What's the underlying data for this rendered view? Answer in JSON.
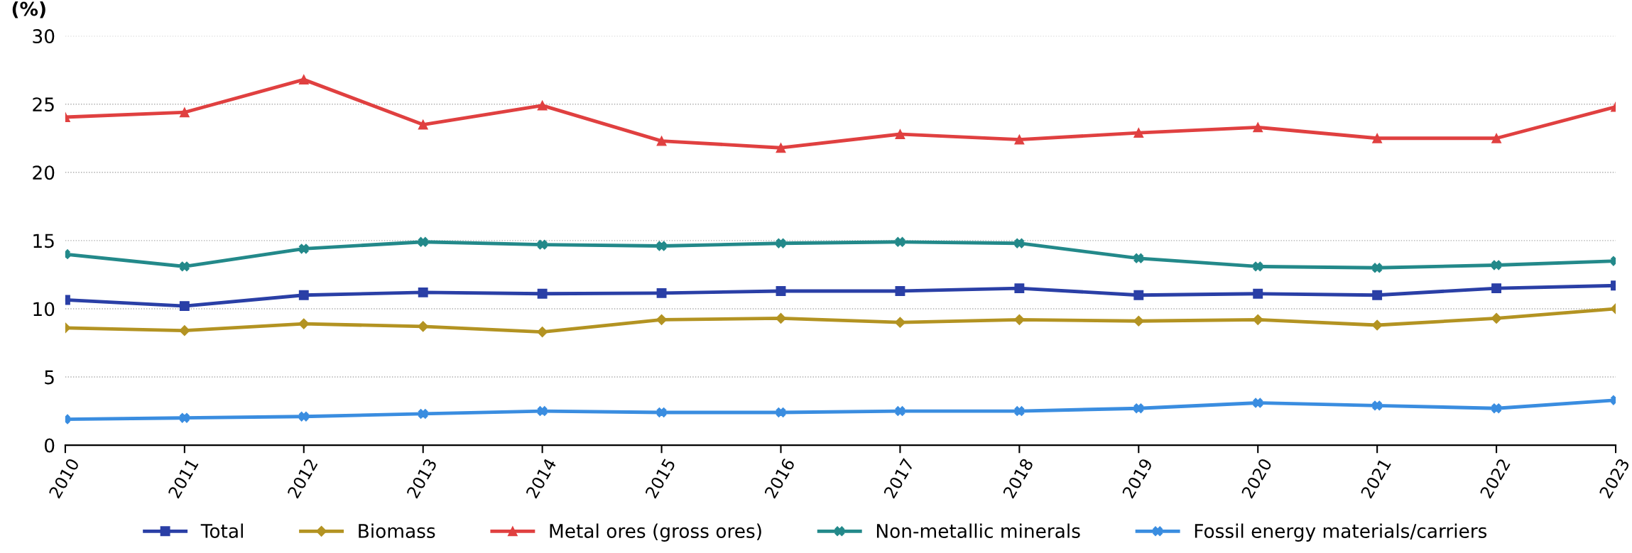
{
  "chart_data": {
    "type": "line",
    "ylabel": "(%)",
    "categories": [
      "2010",
      "2011",
      "2012",
      "2013",
      "2014",
      "2015",
      "2016",
      "2017",
      "2018",
      "2019",
      "2020",
      "2021",
      "2022",
      "2023"
    ],
    "series": [
      {
        "name": "Total",
        "color": "#2a3fa6",
        "marker": "square",
        "values": [
          10.65,
          10.2,
          11.0,
          11.2,
          11.1,
          11.15,
          11.3,
          11.3,
          11.5,
          11.0,
          11.1,
          11.0,
          11.5,
          11.7
        ]
      },
      {
        "name": "Biomass",
        "color": "#b39322",
        "marker": "diamond",
        "values": [
          8.6,
          8.4,
          8.9,
          8.7,
          8.3,
          9.2,
          9.3,
          9.0,
          9.2,
          9.1,
          9.2,
          8.8,
          9.3,
          10.0
        ]
      },
      {
        "name": "Metal ores (gross ores)",
        "color": "#e04040",
        "marker": "triangle",
        "values": [
          24.05,
          24.4,
          26.8,
          23.5,
          24.9,
          22.3,
          21.8,
          22.8,
          22.4,
          22.9,
          23.3,
          22.5,
          22.5,
          24.8
        ]
      },
      {
        "name": "Non-metallic minerals",
        "color": "#23898a",
        "marker": "cross",
        "values": [
          14.0,
          13.1,
          14.4,
          14.9,
          14.7,
          14.6,
          14.8,
          14.9,
          14.8,
          13.7,
          13.1,
          13.0,
          13.2,
          13.5
        ]
      },
      {
        "name": "Fossil energy materials/carriers",
        "color": "#3a8de0",
        "marker": "cross",
        "values": [
          1.9,
          2.0,
          2.1,
          2.3,
          2.5,
          2.4,
          2.4,
          2.5,
          2.5,
          2.7,
          3.1,
          2.9,
          2.7,
          3.3
        ]
      }
    ],
    "ylim": [
      0,
      30
    ],
    "yticks": [
      0,
      5,
      10,
      15,
      20,
      25,
      30
    ],
    "grid": "y",
    "legend": "bottom"
  }
}
